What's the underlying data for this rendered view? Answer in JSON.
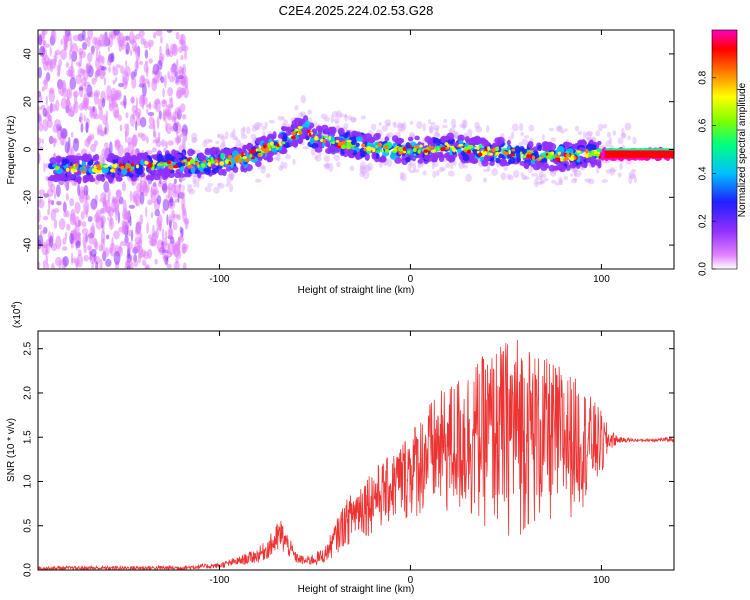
{
  "title": "C2E4.2025.224.02.53.G28",
  "chart_data": [
    {
      "type": "heatmap",
      "xlabel": "Height of straight line (km)",
      "ylabel": "Frequency (Hz)",
      "xlim": [
        -195,
        138
      ],
      "ylim": [
        -50,
        50
      ],
      "xticks": [
        -100,
        0,
        100
      ],
      "yticks": [
        -40,
        -20,
        0,
        20,
        40
      ],
      "colorbar": {
        "label": "Normalized spectral amplitude",
        "range": [
          0,
          1
        ],
        "ticks": [
          "0.0",
          "0.2",
          "0.4",
          "0.6",
          "0.8"
        ],
        "colors": [
          "#ffffff",
          "#e080ff",
          "#9030ff",
          "#2020ff",
          "#00c0ff",
          "#00ff80",
          "#80ff00",
          "#ffff00",
          "#ff8000",
          "#ff0000",
          "#ff00c0"
        ]
      },
      "ridge": {
        "x": [
          -185,
          -160,
          -140,
          -120,
          -100,
          -85,
          -70,
          -60,
          -55,
          -50,
          -45,
          -40,
          -30,
          -20,
          -10,
          0,
          10,
          20,
          30,
          40,
          50,
          60,
          70,
          80,
          90,
          100,
          110,
          120,
          138
        ],
        "y": [
          -8,
          -8,
          -7,
          -6,
          -5,
          -3,
          2,
          7,
          10,
          4,
          5,
          3,
          2,
          1,
          0,
          0,
          0,
          1,
          0,
          -1,
          -1,
          -2,
          -3,
          -3,
          -2,
          -2,
          -2,
          -2,
          -2
        ]
      }
    },
    {
      "type": "line",
      "xlabel": "Height of straight line (km)",
      "ylabel": "SNR (10 * v/v)",
      "y_multiplier": "(x10",
      "y_multiplier_exp": "4",
      "xlim": [
        -195,
        138
      ],
      "ylim": [
        0,
        2.7
      ],
      "xticks": [
        -100,
        0,
        100
      ],
      "yticks": [
        "0.0",
        "0.5",
        "1.0",
        "1.5",
        "2.0",
        "2.5"
      ],
      "color": "#ee3333",
      "envelope": {
        "x": [
          -195,
          -120,
          -100,
          -90,
          -80,
          -75,
          -72,
          -68,
          -64,
          -60,
          -55,
          -50,
          -45,
          -40,
          -35,
          -30,
          -25,
          -20,
          -10,
          0,
          10,
          20,
          30,
          40,
          50,
          55,
          60,
          70,
          80,
          90,
          100,
          104,
          110,
          120,
          138
        ],
        "upper": [
          0.04,
          0.05,
          0.08,
          0.15,
          0.25,
          0.35,
          0.45,
          0.6,
          0.4,
          0.2,
          0.15,
          0.2,
          0.25,
          0.5,
          0.75,
          0.9,
          1.05,
          1.15,
          1.3,
          1.6,
          1.9,
          2.1,
          2.3,
          2.45,
          2.6,
          2.7,
          2.6,
          2.4,
          2.3,
          2.1,
          1.8,
          1.6,
          1.5,
          1.48,
          1.5
        ],
        "lower": [
          0.0,
          0.0,
          0.02,
          0.05,
          0.08,
          0.12,
          0.15,
          0.2,
          0.15,
          0.08,
          0.05,
          0.05,
          0.08,
          0.15,
          0.25,
          0.3,
          0.35,
          0.4,
          0.5,
          0.55,
          0.6,
          0.55,
          0.5,
          0.45,
          0.35,
          0.3,
          0.4,
          0.45,
          0.5,
          0.7,
          1.0,
          1.35,
          1.44,
          1.45,
          1.45
        ]
      }
    }
  ]
}
